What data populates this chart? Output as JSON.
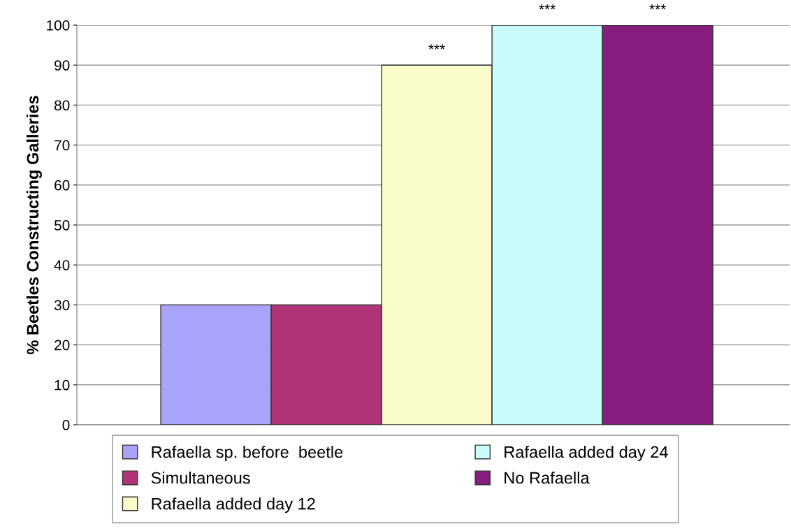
{
  "chart_data": {
    "type": "bar",
    "ylabel": "% Beetles Constructing Galleries",
    "categories": [
      null
    ],
    "series": [
      {
        "name": "Rafaella sp. before  beetle",
        "color": "#aaa3fb",
        "values": [
          30
        ]
      },
      {
        "name": "Simultaneous",
        "color": "#b03277",
        "values": [
          30
        ]
      },
      {
        "name": "Rafaella added day 12",
        "color": "#f9fbc8",
        "values": [
          90
        ]
      },
      {
        "name": "Rafaella added day 24",
        "color": "#c9fbfb",
        "values": [
          100
        ]
      },
      {
        "name": "No Rafaella",
        "color": "#861d7f",
        "values": [
          100
        ]
      }
    ],
    "ylim": [
      0,
      100
    ],
    "yticks": [
      0,
      10,
      20,
      30,
      40,
      50,
      60,
      70,
      80,
      90,
      100
    ],
    "grid": "y",
    "legend": "bottom",
    "annotations": [
      {
        "text": "***",
        "y": 90
      },
      {
        "text": "***",
        "y": 100
      },
      {
        "text": "***",
        "y": 100
      }
    ]
  }
}
